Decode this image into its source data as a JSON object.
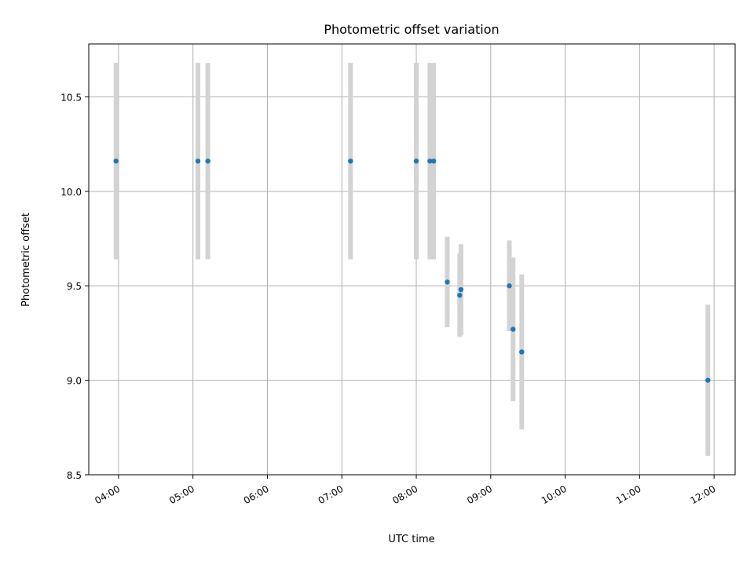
{
  "chart_data": {
    "type": "scatter",
    "title": "Photometric offset variation",
    "xlabel": "UTC time",
    "ylabel": "Photometric offset",
    "xlim": [
      "03:36",
      "12:17"
    ],
    "ylim": [
      8.5,
      10.78
    ],
    "x_ticks": [
      "04:00",
      "05:00",
      "06:00",
      "07:00",
      "08:00",
      "09:00",
      "10:00",
      "11:00",
      "12:00"
    ],
    "y_ticks": [
      {
        "value": 8.5,
        "label": "8.5"
      },
      {
        "value": 9.0,
        "label": "9.0"
      },
      {
        "value": 9.5,
        "label": "9.5"
      },
      {
        "value": 10.0,
        "label": "10.0"
      },
      {
        "value": 10.5,
        "label": "10.5"
      }
    ],
    "grid": true,
    "marker_color": "#1f77b4",
    "errorbar_color": "#d3d3d3",
    "points": [
      {
        "x": "03:58",
        "y": 10.16,
        "err": 0.52
      },
      {
        "x": "05:04",
        "y": 10.16,
        "err": 0.52
      },
      {
        "x": "05:12",
        "y": 10.16,
        "err": 0.52
      },
      {
        "x": "07:07",
        "y": 10.16,
        "err": 0.52
      },
      {
        "x": "08:00",
        "y": 10.16,
        "err": 0.52
      },
      {
        "x": "08:11",
        "y": 10.16,
        "err": 0.52
      },
      {
        "x": "08:14",
        "y": 10.16,
        "err": 0.52
      },
      {
        "x": "08:25",
        "y": 9.52,
        "err": 0.24
      },
      {
        "x": "08:35",
        "y": 9.45,
        "err": 0.22
      },
      {
        "x": "08:36",
        "y": 9.48,
        "err": 0.24
      },
      {
        "x": "09:15",
        "y": 9.5,
        "err": 0.24
      },
      {
        "x": "09:18",
        "y": 9.27,
        "err": 0.38
      },
      {
        "x": "09:25",
        "y": 9.15,
        "err": 0.41
      },
      {
        "x": "11:55",
        "y": 9.0,
        "err": 0.4
      }
    ]
  }
}
